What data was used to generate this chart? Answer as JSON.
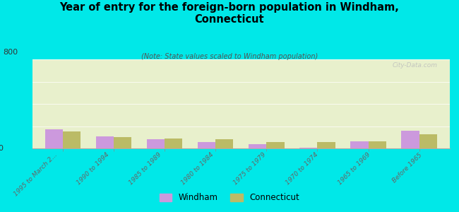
{
  "title": "Year of entry for the foreign-born population in Windham,\nConnecticut",
  "subtitle": "(Note: State values scaled to Windham population)",
  "categories": [
    "1995 to March 2...",
    "1990 to 1994",
    "1985 to 1989",
    "1980 to 1984",
    "1975 to 1979",
    "1970 to 1974",
    "1965 to 1969",
    "Before 1965"
  ],
  "windham_values": [
    170,
    105,
    80,
    60,
    40,
    8,
    65,
    160
  ],
  "ct_values": [
    150,
    100,
    90,
    80,
    60,
    55,
    62,
    125
  ],
  "windham_color": "#cc99dd",
  "ct_color": "#bbbb66",
  "background_color": "#00e8e8",
  "plot_bg": "#e8f0cc",
  "ylim": [
    0,
    800
  ],
  "bar_width": 0.35,
  "watermark": "City-Data.com"
}
